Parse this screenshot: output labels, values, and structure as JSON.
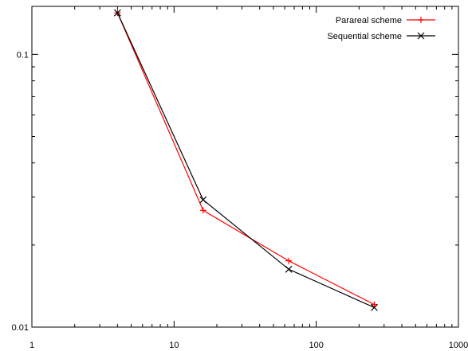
{
  "chart_data": {
    "type": "line",
    "title": "",
    "xlabel": "",
    "ylabel": "",
    "xscale": "log",
    "yscale": "log",
    "xlim": [
      1,
      1000
    ],
    "ylim": [
      0.01,
      0.15
    ],
    "grid": false,
    "legend_position": "top-right",
    "x_ticks": [
      {
        "value": 1,
        "label": "1"
      },
      {
        "value": 10,
        "label": "10"
      },
      {
        "value": 100,
        "label": "100"
      },
      {
        "value": 1000,
        "label": "1000"
      }
    ],
    "y_ticks": [
      {
        "value": 0.01,
        "label": "0.01"
      },
      {
        "value": 0.1,
        "label": "0.1"
      }
    ],
    "series": [
      {
        "name": "Parareal scheme",
        "color": "#ff0000",
        "marker": "plus",
        "x": [
          4,
          16,
          64,
          256
        ],
        "y": [
          0.142,
          0.0268,
          0.0175,
          0.0121
        ]
      },
      {
        "name": "Sequential scheme",
        "color": "#000000",
        "marker": "cross",
        "x": [
          4,
          16,
          64,
          256
        ],
        "y": [
          0.142,
          0.0293,
          0.0163,
          0.0118
        ]
      }
    ]
  }
}
